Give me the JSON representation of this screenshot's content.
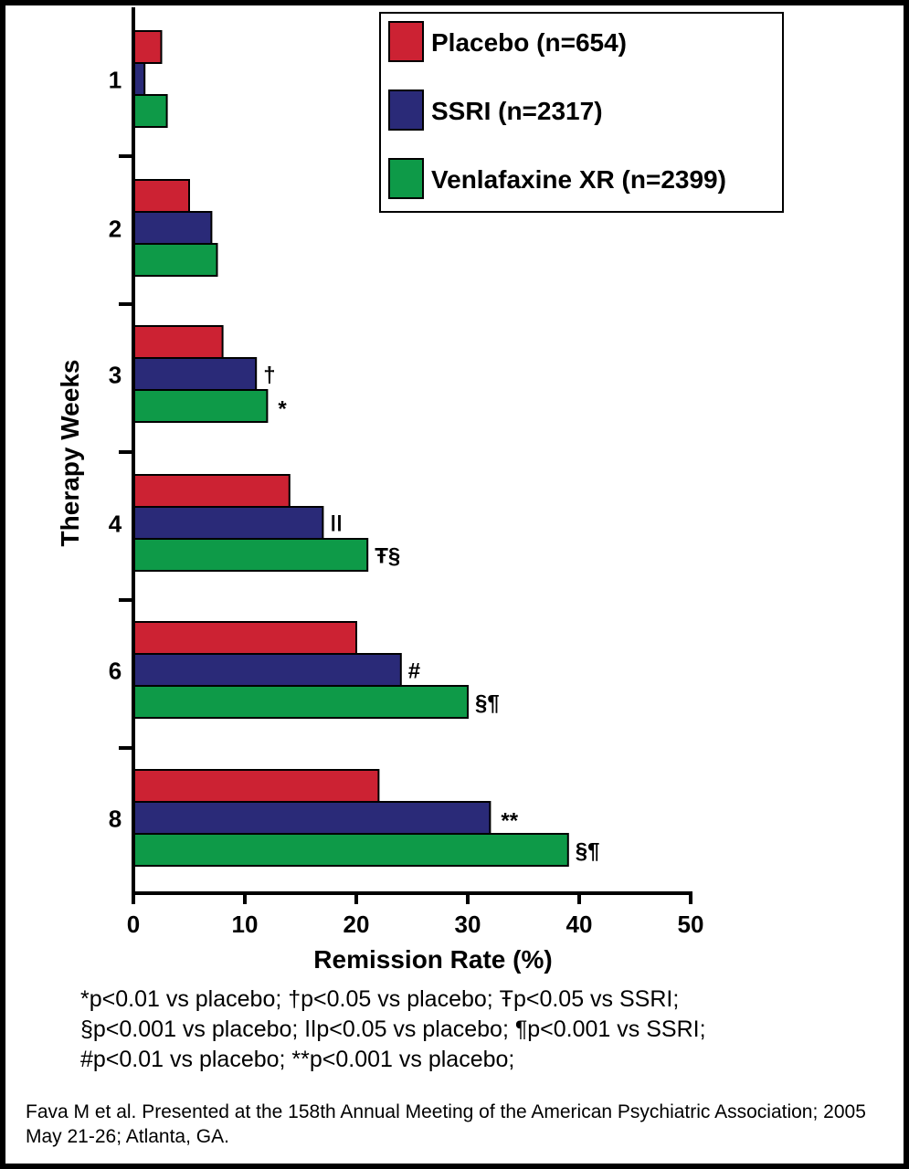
{
  "chart_data": {
    "type": "bar",
    "orientation": "horizontal",
    "categories": [
      "1",
      "2",
      "3",
      "4",
      "6",
      "8"
    ],
    "series": [
      {
        "name": "Placebo (n=654)",
        "color": "#cc2233",
        "values": [
          2.5,
          5,
          8,
          14,
          20,
          22
        ]
      },
      {
        "name": "SSRI (n=2317)",
        "color": "#2a2a78",
        "values": [
          1,
          7,
          11,
          17,
          24,
          32
        ]
      },
      {
        "name": "Venlafaxine XR (n=2399)",
        "color": "#0e9a48",
        "values": [
          3,
          7.5,
          12,
          21,
          30,
          39
        ]
      }
    ],
    "annotations": [
      {
        "category": "3",
        "series": "SSRI (n=2317)",
        "text": "†"
      },
      {
        "category": "3",
        "series": "Venlafaxine XR (n=2399)",
        "text": "*"
      },
      {
        "category": "4",
        "series": "SSRI (n=2317)",
        "text": "ǀǀ"
      },
      {
        "category": "4",
        "series": "Venlafaxine XR (n=2399)",
        "text": "Ŧ§"
      },
      {
        "category": "6",
        "series": "SSRI (n=2317)",
        "text": "#"
      },
      {
        "category": "6",
        "series": "Venlafaxine XR (n=2399)",
        "text": "§¶"
      },
      {
        "category": "8",
        "series": "SSRI (n=2317)",
        "text": "**"
      },
      {
        "category": "8",
        "series": "Venlafaxine XR (n=2399)",
        "text": "§¶"
      }
    ],
    "xlabel": "Remission Rate (%)",
    "ylabel": "Therapy Weeks",
    "xlim": [
      0,
      50
    ],
    "xticks": [
      "0",
      "10",
      "20",
      "30",
      "40",
      "50"
    ],
    "legend_position": "top-right",
    "grid": false
  },
  "footnotes": [
    "*p<0.01 vs placebo; †p<0.05 vs placebo; Ŧp<0.05 vs SSRI;",
    "§p<0.001 vs placebo; ǀǀp<0.05 vs placebo; ¶p<0.001 vs SSRI;",
    "#p<0.01 vs placebo; **p<0.001 vs placebo;"
  ],
  "citation": "Fava M et al. Presented at the 158th Annual Meeting of the American Psychiatric Association; 2005 May 21-26; Atlanta, GA."
}
